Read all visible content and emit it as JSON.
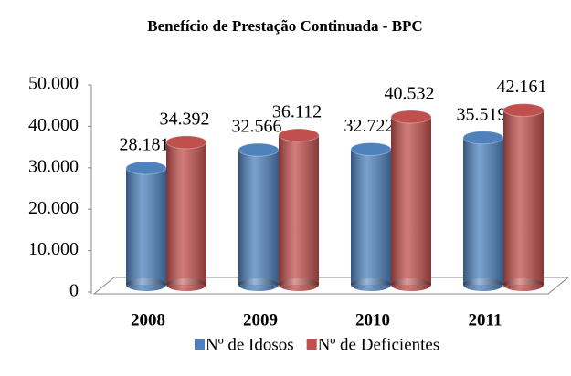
{
  "chart_data": {
    "type": "bar3d",
    "title": "Benefício  de Prestação Continuada - BPC",
    "categories": [
      "2008",
      "2009",
      "2010",
      "2011"
    ],
    "series": [
      {
        "name": "Nº de Idosos",
        "color": "#4f81bd",
        "values": [
          28181,
          32566,
          32722,
          35519
        ],
        "value_labels": [
          "28.181",
          "32.566",
          "32.722",
          "35.519"
        ]
      },
      {
        "name": "Nº de Deficientes",
        "color": "#c0504d",
        "values": [
          34392,
          36112,
          40532,
          42161
        ],
        "value_labels": [
          "34.392",
          "36.112",
          "40.532",
          "42.161"
        ]
      }
    ],
    "ylim": [
      0,
      50000
    ],
    "yticks": [
      0,
      {
        "value": 10000,
        "label": "10.000"
      },
      {
        "value": 20000,
        "label": "20.000"
      },
      {
        "value": 30000,
        "label": "30.000"
      },
      {
        "value": 40000,
        "label": "40.000"
      },
      {
        "value": 50000,
        "label": "50.000"
      }
    ],
    "grid": false,
    "legend": "bottom"
  }
}
